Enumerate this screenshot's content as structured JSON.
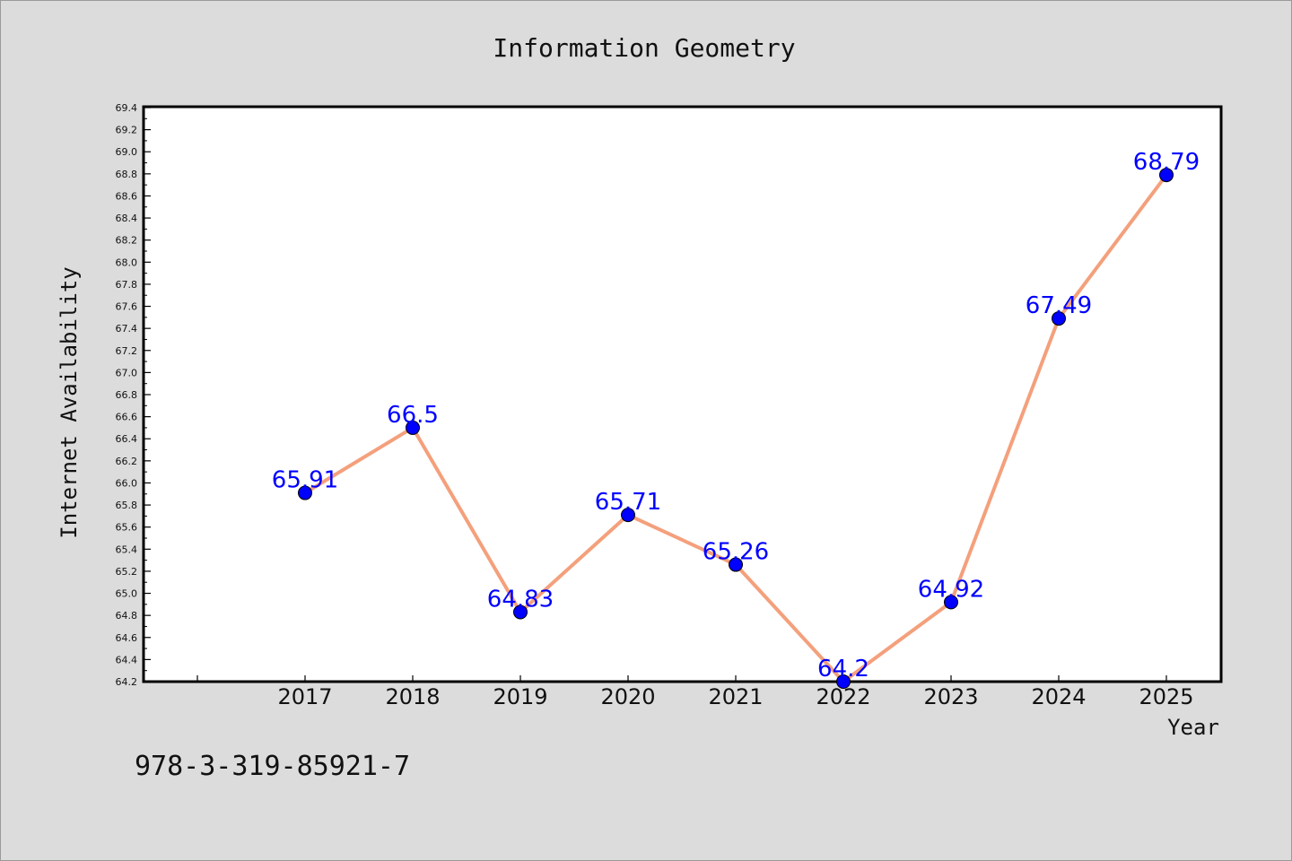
{
  "chart_data": {
    "type": "line",
    "title": "Information Geometry",
    "xlabel": "Year",
    "ylabel": "Internet Availability",
    "categories": [
      "2017",
      "2018",
      "2019",
      "2020",
      "2021",
      "2022",
      "2023",
      "2024",
      "2025"
    ],
    "series": [
      {
        "values": [
          65.91,
          66.5,
          64.83,
          65.71,
          65.26,
          64.2,
          64.92,
          67.49,
          68.79
        ]
      }
    ],
    "data_labels": [
      "65.91",
      "66.5",
      "64.83",
      "65.71",
      "65.26",
      "64.2",
      "64.92",
      "67.49",
      "68.79"
    ],
    "ylim": [
      64.2,
      69.4
    ],
    "ytick_step": 0.2,
    "grid": false,
    "legend": "none",
    "colors": {
      "line": "#f4a07c",
      "marker": "#0000ff",
      "data_label": "#0000ff",
      "plot_background": "#ffffff",
      "figure_background": "#dcdcdc"
    }
  },
  "footer_text": "978-3-319-85921-7"
}
